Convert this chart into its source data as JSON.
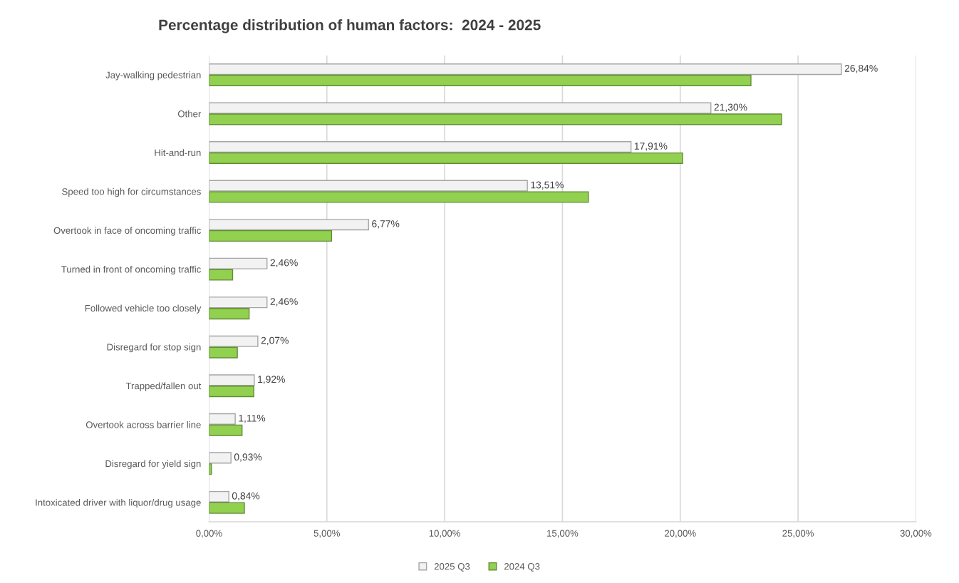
{
  "chart_data": {
    "type": "bar",
    "orientation": "horizontal",
    "title": "Percentage distribution of human factors:  2024 - 2025",
    "categories": [
      "Jay-walking pedestrian",
      "Other",
      "Hit-and-run",
      "Speed too high for circumstances",
      "Overtook in face of oncoming traffic",
      "Turned in front of oncoming traffic",
      "Followed vehicle too closely",
      "Disregard for stop sign",
      "Trapped/fallen out",
      "Overtook across barrier line",
      "Disregard for yield sign",
      "Intoxicated driver with liquor/drug usage"
    ],
    "series": [
      {
        "name": "2025 Q3",
        "color": "#f2f2f2",
        "values": [
          26.84,
          21.3,
          17.91,
          13.51,
          6.77,
          2.46,
          2.46,
          2.07,
          1.92,
          1.11,
          0.93,
          0.84
        ],
        "value_labels": [
          "26,84%",
          "21,30%",
          "17,91%",
          "13,51%",
          "6,77%",
          "2,46%",
          "2,46%",
          "2,07%",
          "1,92%",
          "1,11%",
          "0,93%",
          "0,84%"
        ]
      },
      {
        "name": "2024 Q3",
        "color": "#92d050",
        "values": [
          23.0,
          24.3,
          20.1,
          16.1,
          5.2,
          1.0,
          1.7,
          1.2,
          1.9,
          1.4,
          0.1,
          1.5
        ]
      }
    ],
    "xlim": [
      0,
      30
    ],
    "xticks": [
      {
        "value": 0,
        "label": "0,00%"
      },
      {
        "value": 5,
        "label": "5,00%"
      },
      {
        "value": 10,
        "label": "10,00%"
      },
      {
        "value": 15,
        "label": "15,00%"
      },
      {
        "value": 20,
        "label": "20,00%"
      },
      {
        "value": 25,
        "label": "25,00%"
      },
      {
        "value": 30,
        "label": "30,00%"
      }
    ],
    "grid": "x",
    "legend": "bottom"
  }
}
